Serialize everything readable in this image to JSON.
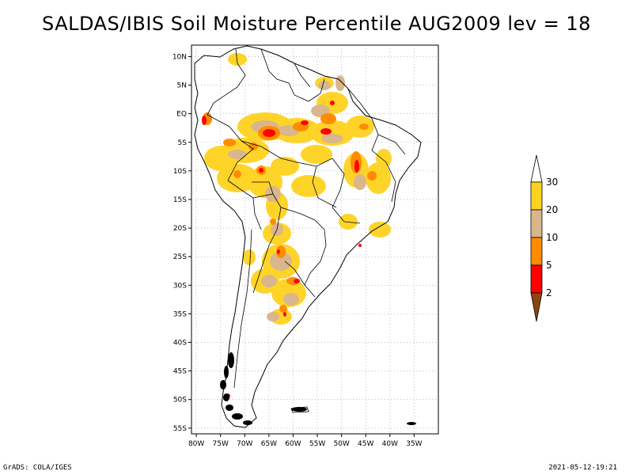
{
  "title": "SALDAS/IBIS Soil Moisture Percentile AUG2009 lev = 18",
  "footer": {
    "left": "GrADS: COLA/IGES",
    "right": "2021-05-12-19:21"
  },
  "map": {
    "lat_labels": [
      "10N",
      "5N",
      "EQ",
      "5S",
      "10S",
      "15S",
      "20S",
      "25S",
      "30S",
      "35S",
      "40S",
      "45S",
      "50S",
      "55S"
    ],
    "lon_labels": [
      "80W",
      "75W",
      "70W",
      "65W",
      "60W",
      "55W",
      "50W",
      "45W",
      "40W",
      "35W"
    ]
  },
  "legend": {
    "labels": [
      "30",
      "20",
      "10",
      "5",
      "2"
    ],
    "colors": {
      "above30": "#ffffff",
      "p20_30": "#ffd21e",
      "p10_20": "#d9b68c",
      "p5_10": "#ff8c00",
      "p2_5": "#ff0000",
      "below2": "#8b4513"
    }
  },
  "colors": {
    "yellow": "#ffd21e",
    "tan": "#d9b68c",
    "orange": "#ff8c00",
    "red": "#ff0000"
  }
}
